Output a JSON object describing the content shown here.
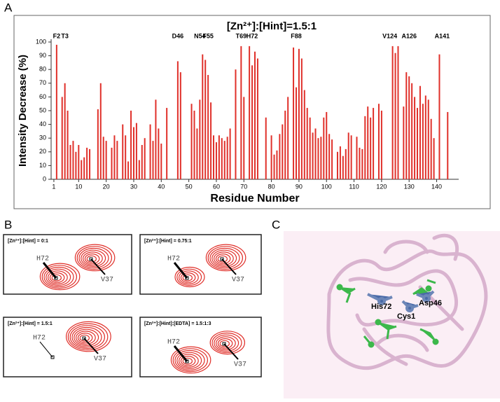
{
  "panels": [
    "A",
    "B",
    "C"
  ],
  "chart_data": {
    "type": "bar",
    "title": "[Zn²⁺]:[Hint]=1.5:1",
    "x_label": "Residue Number",
    "y_label": "Intensity Decrease (%)",
    "x": [
      2,
      4,
      5,
      6,
      7,
      8,
      9,
      10,
      11,
      12,
      13,
      14,
      17,
      18,
      19,
      20,
      22,
      23,
      24,
      26,
      27,
      28,
      29,
      30,
      31,
      32,
      33,
      34,
      36,
      37,
      38,
      39,
      40,
      42,
      46,
      47,
      51,
      52,
      53,
      54,
      55,
      56,
      57,
      58,
      59,
      60,
      61,
      62,
      63,
      64,
      65,
      67,
      69,
      70,
      72,
      73,
      74,
      75,
      78,
      80,
      81,
      82,
      83,
      84,
      85,
      86,
      88,
      89,
      90,
      91,
      92,
      93,
      94,
      95,
      96,
      97,
      98,
      99,
      100,
      101,
      102,
      104,
      105,
      106,
      107,
      108,
      109,
      111,
      112,
      113,
      114,
      115,
      116,
      117,
      119,
      120,
      124,
      125,
      126,
      128,
      129,
      130,
      131,
      132,
      133,
      134,
      135,
      136,
      137,
      138,
      139,
      141,
      144
    ],
    "series": [
      {
        "color": "#e0302a",
        "values": [
          98,
          60,
          70,
          50,
          25,
          28,
          20,
          25,
          14,
          16,
          23,
          22,
          51,
          70,
          31,
          28,
          23,
          32,
          28,
          40,
          32,
          13,
          50,
          38,
          41,
          14,
          25,
          30,
          40,
          28,
          58,
          37,
          26,
          52,
          86,
          78,
          55,
          50,
          37,
          58,
          91,
          87,
          76,
          56,
          32,
          27,
          32,
          30,
          28,
          31,
          37,
          80,
          97,
          60,
          97,
          83,
          93,
          88,
          45,
          32,
          18,
          21,
          33,
          40,
          50,
          60,
          96,
          67,
          95,
          88,
          65,
          52,
          45,
          34,
          37,
          30,
          31,
          45,
          49,
          33,
          29,
          20,
          24,
          17,
          22,
          34,
          32,
          31,
          23,
          22,
          46,
          53,
          45,
          52,
          55,
          50,
          97,
          92,
          97,
          53,
          78,
          75,
          70,
          60,
          52,
          68,
          55,
          61,
          58,
          44,
          30,
          91,
          49
        ]
      }
    ],
    "annotations": [
      {
        "text": "F2",
        "x": 2
      },
      {
        "text": "T3",
        "x": 5
      },
      {
        "text": "D46",
        "x": 46
      },
      {
        "text": "N54",
        "x": 54
      },
      {
        "text": "F55",
        "x": 57
      },
      {
        "text": "T69",
        "x": 69
      },
      {
        "text": "H72",
        "x": 73
      },
      {
        "text": "F88",
        "x": 89
      },
      {
        "text": "V124",
        "x": 123
      },
      {
        "text": "A126",
        "x": 130
      },
      {
        "text": "A141",
        "x": 142
      }
    ],
    "xlim": [
      0,
      148
    ],
    "xticks": [
      1,
      10,
      20,
      30,
      40,
      50,
      60,
      70,
      80,
      90,
      100,
      110,
      120,
      130,
      140
    ],
    "ylim": [
      0,
      100
    ],
    "yticks": [
      0,
      10,
      20,
      30,
      40,
      50,
      60,
      70,
      80,
      90,
      100
    ],
    "grid": false
  },
  "panel_b": [
    {
      "condition": "[Zn²⁺]:[Hint] = 0:1",
      "peaks": [
        "H72",
        "V37"
      ]
    },
    {
      "condition": "[Zn²⁺]:[Hint] = 0.75:1",
      "peaks": [
        "H72",
        "V37"
      ]
    },
    {
      "condition": "[Zn²⁺]:[Hint] = 1.5:1",
      "peaks": [
        "H72",
        "V37"
      ]
    },
    {
      "condition": "[Zn²⁺]:[Hint]:[EDTA] = 1.5:1:3",
      "peaks": [
        "H72",
        "V37"
      ]
    }
  ],
  "panel_c": {
    "labels": [
      "His72",
      "Cys1",
      "Asp46"
    ]
  }
}
